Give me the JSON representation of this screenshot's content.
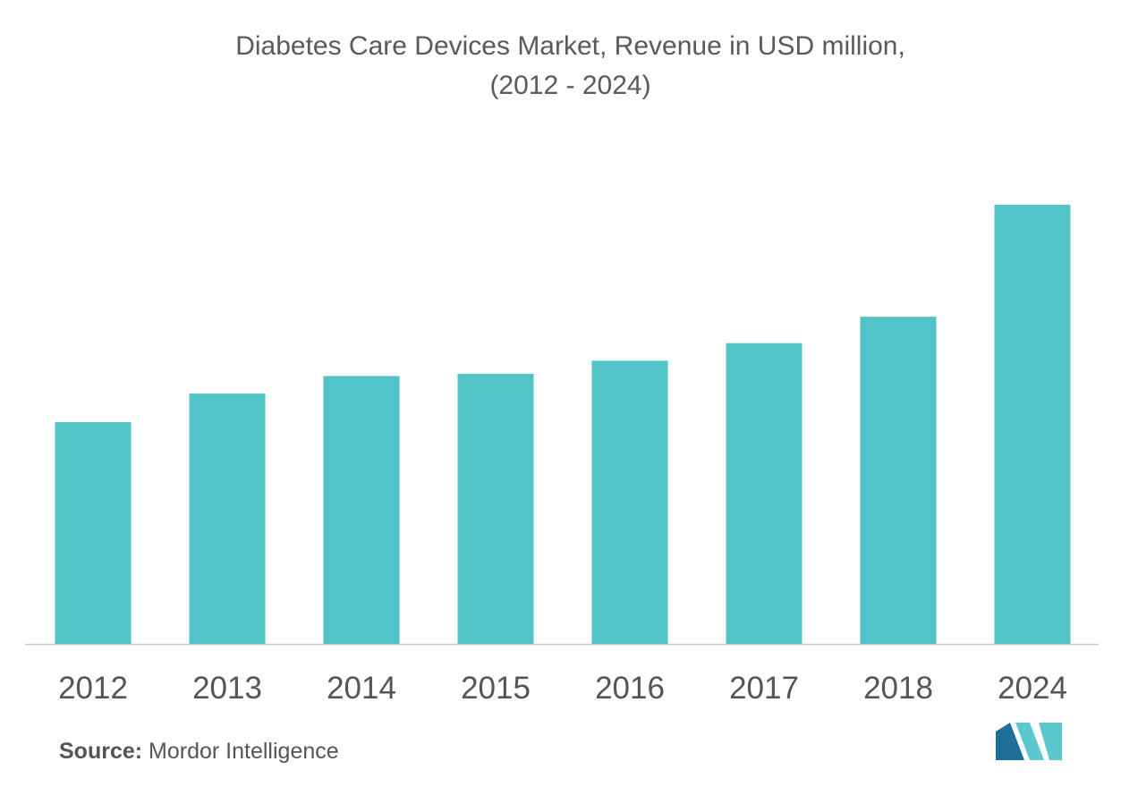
{
  "chart_data": {
    "type": "bar",
    "title_line1": "Diabetes Care Devices Market, Revenue in USD million,",
    "title_line2": "(2012 - 2024)",
    "categories": [
      "2012",
      "2013",
      "2014",
      "2015",
      "2016",
      "2017",
      "2018",
      "2024"
    ],
    "values": [
      50.5,
      57,
      61,
      61.5,
      64.5,
      68.5,
      74.5,
      100
    ],
    "xlabel": "",
    "ylabel": "",
    "ylim": [
      0,
      100
    ],
    "grid": false,
    "bar_color": "#52c3c9",
    "axis_color": "#cccccc"
  },
  "source": {
    "label": "Source:",
    "text": "Mordor Intelligence"
  },
  "logo": {
    "colors": [
      "#1f6f9a",
      "#5bc8d0"
    ]
  }
}
